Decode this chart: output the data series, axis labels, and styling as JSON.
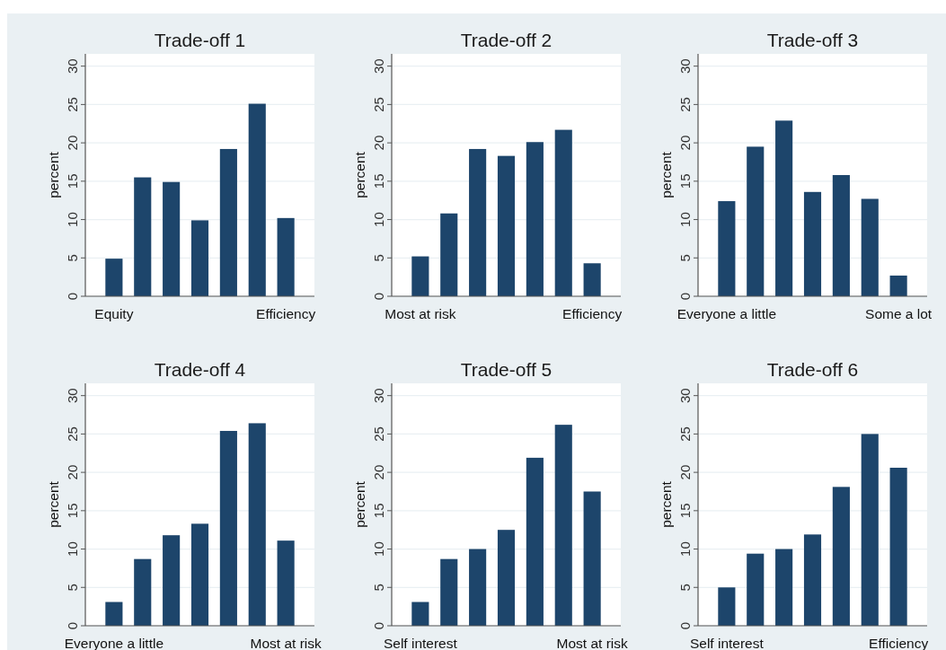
{
  "chart_data": [
    {
      "type": "bar",
      "title": "Trade-off 1",
      "ylabel": "percent",
      "categories": [
        "Equity",
        null,
        null,
        null,
        null,
        null,
        "Efficiency"
      ],
      "values": [
        4.9,
        15.5,
        14.9,
        9.9,
        19.2,
        25.1,
        10.2
      ],
      "color": "#1d456b",
      "ylim": [
        0,
        31.6
      ],
      "yticks": [
        0,
        5,
        10,
        15,
        20,
        25,
        30
      ],
      "grid": "y"
    },
    {
      "type": "bar",
      "title": "Trade-off 2",
      "ylabel": "percent",
      "categories": [
        "Most at risk",
        null,
        null,
        null,
        null,
        null,
        "Efficiency"
      ],
      "values": [
        5.2,
        10.8,
        19.2,
        18.3,
        20.1,
        21.7,
        4.3
      ],
      "color": "#1d456b",
      "ylim": [
        0,
        31.6
      ],
      "yticks": [
        0,
        5,
        10,
        15,
        20,
        25,
        30
      ],
      "grid": "y"
    },
    {
      "type": "bar",
      "title": "Trade-off 3",
      "ylabel": "percent",
      "categories": [
        "Everyone a little",
        null,
        null,
        null,
        null,
        null,
        "Some a lot"
      ],
      "values": [
        12.4,
        19.5,
        22.9,
        13.6,
        15.8,
        12.7,
        2.7
      ],
      "color": "#1d456b",
      "ylim": [
        0,
        31.6
      ],
      "yticks": [
        0,
        5,
        10,
        15,
        20,
        25,
        30
      ],
      "grid": "y"
    },
    {
      "type": "bar",
      "title": "Trade-off 4",
      "ylabel": "percent",
      "categories": [
        "Everyone a little",
        null,
        null,
        null,
        null,
        null,
        "Most at risk"
      ],
      "values": [
        3.1,
        8.7,
        11.8,
        13.3,
        25.4,
        26.4,
        11.1
      ],
      "color": "#1d456b",
      "ylim": [
        0,
        31.6
      ],
      "yticks": [
        0,
        5,
        10,
        15,
        20,
        25,
        30
      ],
      "grid": "y"
    },
    {
      "type": "bar",
      "title": "Trade-off 5",
      "ylabel": "percent",
      "categories": [
        "Self interest",
        null,
        null,
        null,
        null,
        null,
        "Most at risk"
      ],
      "values": [
        3.1,
        8.7,
        10.0,
        12.5,
        21.9,
        26.2,
        17.5
      ],
      "color": "#1d456b",
      "ylim": [
        0,
        31.6
      ],
      "yticks": [
        0,
        5,
        10,
        15,
        20,
        25,
        30
      ],
      "grid": "y"
    },
    {
      "type": "bar",
      "title": "Trade-off 6",
      "ylabel": "percent",
      "categories": [
        "Self interest",
        null,
        null,
        null,
        null,
        null,
        "Efficiency"
      ],
      "values": [
        5.0,
        9.4,
        10.0,
        11.9,
        18.1,
        25.0,
        20.6
      ],
      "color": "#1d456b",
      "ylim": [
        0,
        31.6
      ],
      "yticks": [
        0,
        5,
        10,
        15,
        20,
        25,
        30
      ],
      "grid": "y"
    }
  ]
}
